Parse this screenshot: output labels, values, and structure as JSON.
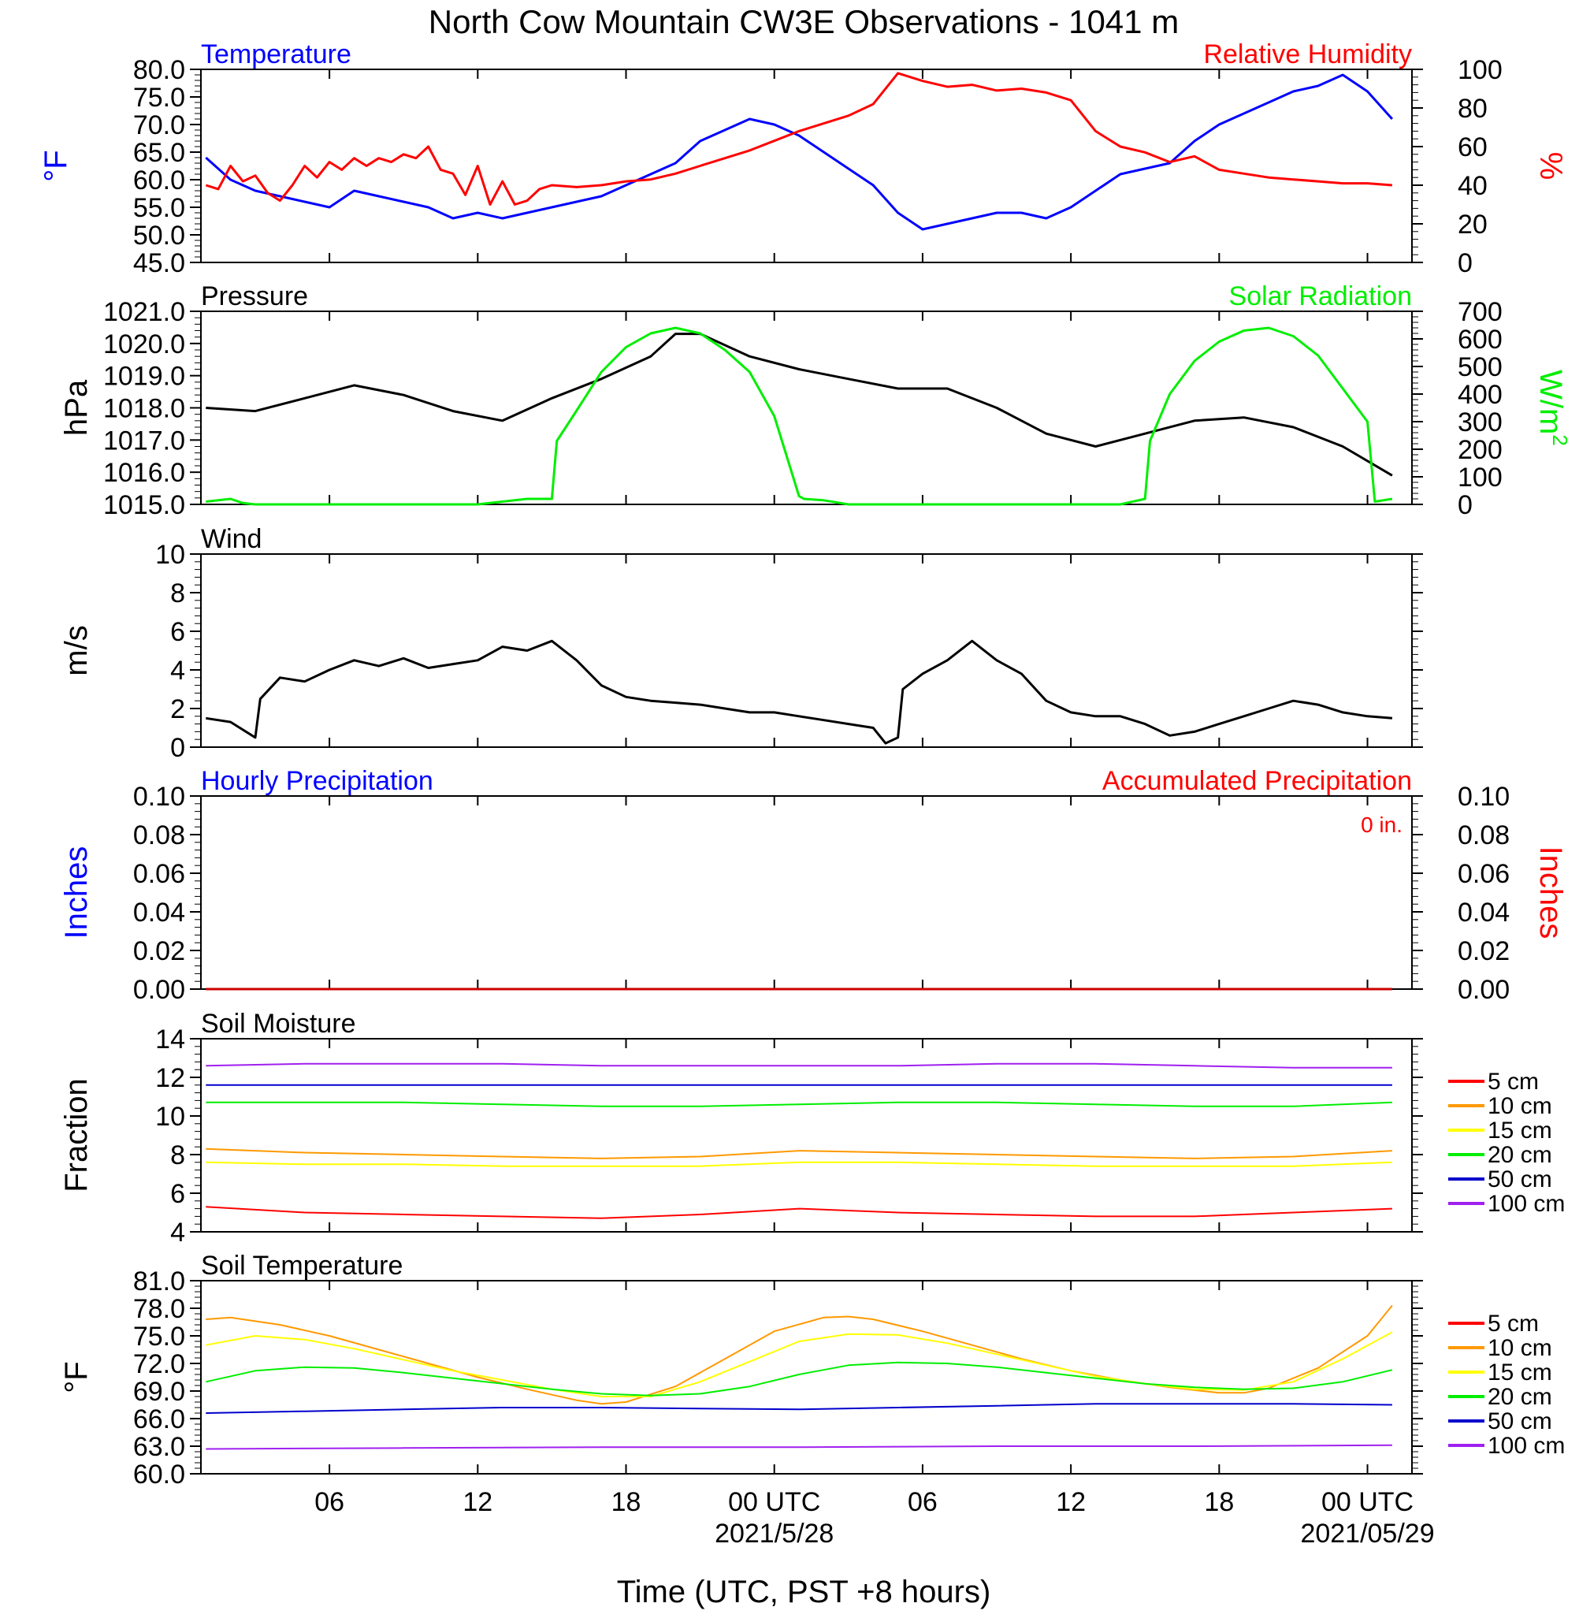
{
  "title": "North Cow Mountain CW3E Observations - 1041 m",
  "xlabel": "Time (UTC, PST +8 hours)",
  "x_ticks": [
    "06",
    "12",
    "18",
    "00 UTC",
    "06",
    "12",
    "18",
    "00 UTC"
  ],
  "x_dates": [
    "2021/5/28",
    "2021/05/29"
  ],
  "colors": {
    "blue": "#0000ff",
    "red": "#ff0000",
    "green": "#00ee00",
    "black": "#000000",
    "orange": "#ff9900",
    "yellow": "#ffff00",
    "purple": "#a020f0"
  },
  "chart_data": [
    {
      "type": "line",
      "title_left": "Temperature",
      "title_right": "Relative Humidity",
      "ylabel_left": "°F",
      "ylabel_right": "%",
      "ylim_left": [
        45,
        80
      ],
      "ylim_right": [
        0,
        100
      ],
      "yticks_left": [
        "45.0",
        "50.0",
        "55.0",
        "60.0",
        "65.0",
        "70.0",
        "75.0",
        "80.0"
      ],
      "yticks_right": [
        "0",
        "20",
        "40",
        "60",
        "80",
        "100"
      ],
      "series": [
        {
          "name": "Temperature",
          "axis": "left",
          "color": "#0000ff",
          "x": [
            1,
            2,
            3,
            4,
            5,
            6,
            7,
            8,
            9,
            10,
            11,
            12,
            13,
            14,
            15,
            16,
            17,
            18,
            19,
            20,
            21,
            22,
            23,
            24,
            25,
            26,
            27,
            28,
            29,
            30,
            31,
            32,
            33,
            34,
            35,
            36,
            37,
            38,
            39,
            40,
            41,
            42,
            43,
            44,
            45,
            46,
            47,
            48,
            49
          ],
          "y": [
            64,
            60,
            58,
            57,
            56,
            55,
            58,
            57,
            56,
            55,
            53,
            54,
            53,
            54,
            55,
            56,
            57,
            59,
            61,
            63,
            67,
            69,
            71,
            70,
            68,
            65,
            62,
            59,
            54,
            51,
            52,
            53,
            54,
            54,
            53,
            55,
            58,
            61,
            62,
            63,
            67,
            70,
            72,
            74,
            76,
            77,
            79,
            76,
            71
          ]
        },
        {
          "name": "Relative Humidity",
          "axis": "right",
          "color": "#ff0000",
          "x": [
            1,
            1.5,
            2,
            2.5,
            3,
            3.5,
            4,
            4.5,
            5,
            5.5,
            6,
            6.5,
            7,
            7.5,
            8,
            8.5,
            9,
            9.5,
            10,
            10.5,
            11,
            11.5,
            12,
            12.5,
            13,
            13.5,
            14,
            14.5,
            15,
            16,
            17,
            18,
            19,
            20,
            21,
            22,
            23,
            24,
            25,
            26,
            27,
            28,
            29,
            30,
            31,
            32,
            33,
            34,
            35,
            36,
            37,
            38,
            39,
            40,
            41,
            42,
            43,
            44,
            45,
            46,
            47,
            48,
            49
          ],
          "y": [
            40,
            38,
            50,
            42,
            45,
            36,
            32,
            40,
            50,
            44,
            52,
            48,
            54,
            50,
            54,
            52,
            56,
            54,
            60,
            48,
            46,
            35,
            50,
            30,
            42,
            30,
            32,
            38,
            40,
            39,
            40,
            42,
            43,
            46,
            50,
            54,
            58,
            63,
            68,
            72,
            76,
            82,
            98,
            94,
            91,
            92,
            89,
            90,
            88,
            84,
            68,
            60,
            57,
            52,
            55,
            48,
            46,
            44,
            43,
            42,
            41,
            41,
            40
          ]
        }
      ]
    },
    {
      "type": "line",
      "title_left": "Pressure",
      "title_right": "Solar Radiation",
      "ylabel_left": "hPa",
      "ylabel_right": "W/m",
      "ylabel_right_sup": "2",
      "ylim_left": [
        1015,
        1021
      ],
      "ylim_right": [
        0,
        700
      ],
      "yticks_left": [
        "1015.0",
        "1016.0",
        "1017.0",
        "1018.0",
        "1019.0",
        "1020.0",
        "1021.0"
      ],
      "yticks_right": [
        "0",
        "100",
        "200",
        "300",
        "400",
        "500",
        "600",
        "700"
      ],
      "series": [
        {
          "name": "Pressure",
          "axis": "left",
          "color": "#000000",
          "x": [
            1,
            3,
            5,
            7,
            9,
            11,
            13,
            15,
            17,
            19,
            20,
            21,
            23,
            25,
            27,
            29,
            31,
            33,
            35,
            37,
            39,
            41,
            43,
            45,
            47,
            49
          ],
          "y": [
            1018.0,
            1017.9,
            1018.3,
            1018.7,
            1018.4,
            1017.9,
            1017.6,
            1018.3,
            1018.9,
            1019.6,
            1020.3,
            1020.3,
            1019.6,
            1019.2,
            1018.9,
            1018.6,
            1018.6,
            1018.0,
            1017.2,
            1016.8,
            1017.2,
            1017.6,
            1017.7,
            1017.4,
            1016.8,
            1015.9
          ]
        },
        {
          "name": "Solar Radiation",
          "axis": "right",
          "color": "#00ee00",
          "x": [
            1,
            2,
            2.5,
            3,
            4,
            6,
            8,
            10,
            12,
            14,
            15,
            15.2,
            16,
            17,
            18,
            19,
            20,
            21,
            22,
            23,
            24,
            25,
            25.2,
            26,
            27,
            28,
            29,
            30,
            33,
            36,
            38,
            39,
            39.2,
            40,
            41,
            42,
            43,
            44,
            45,
            46,
            47,
            48,
            48.3,
            49
          ],
          "y": [
            10,
            20,
            5,
            0,
            0,
            0,
            0,
            0,
            0,
            20,
            20,
            230,
            340,
            480,
            570,
            620,
            640,
            620,
            560,
            480,
            320,
            30,
            20,
            15,
            0,
            0,
            0,
            0,
            0,
            0,
            0,
            20,
            230,
            400,
            520,
            590,
            630,
            640,
            610,
            540,
            420,
            300,
            10,
            20
          ]
        }
      ]
    },
    {
      "type": "line",
      "title_left": "Wind",
      "ylabel_left": "m/s",
      "ylim_left": [
        0,
        10
      ],
      "yticks_left": [
        "0",
        "2",
        "4",
        "6",
        "8",
        "10"
      ],
      "series": [
        {
          "name": "Wind",
          "axis": "left",
          "color": "#000000",
          "x": [
            1,
            2,
            3,
            3.2,
            4,
            5,
            6,
            7,
            8,
            9,
            10,
            11,
            12,
            13,
            14,
            15,
            16,
            17,
            18,
            19,
            20,
            21,
            22,
            23,
            24,
            25,
            26,
            27,
            28,
            28.5,
            29,
            29.2,
            30,
            31,
            32,
            33,
            34,
            35,
            36,
            37,
            38,
            39,
            40,
            41,
            42,
            43,
            44,
            45,
            46,
            47,
            48,
            49
          ],
          "y": [
            1.5,
            1.3,
            0.5,
            2.5,
            3.6,
            3.4,
            4.0,
            4.5,
            4.2,
            4.6,
            4.1,
            4.3,
            4.5,
            5.2,
            5.0,
            5.5,
            4.5,
            3.2,
            2.6,
            2.4,
            2.3,
            2.2,
            2.0,
            1.8,
            1.8,
            1.6,
            1.4,
            1.2,
            1.0,
            0.2,
            0.5,
            3.0,
            3.8,
            4.5,
            5.5,
            4.5,
            3.8,
            2.4,
            1.8,
            1.6,
            1.6,
            1.2,
            0.6,
            0.8,
            1.2,
            1.6,
            2.0,
            2.4,
            2.2,
            1.8,
            1.6,
            1.5
          ]
        }
      ]
    },
    {
      "type": "line",
      "title_left": "Hourly Precipitation",
      "title_right": "Accumulated Precipitation",
      "annotation": "0 in.",
      "ylabel_left": "Inches",
      "ylabel_right": "Inches",
      "ylim_left": [
        0,
        0.1
      ],
      "ylim_right": [
        0,
        0.1
      ],
      "yticks_left": [
        "0.00",
        "0.02",
        "0.04",
        "0.06",
        "0.08",
        "0.10"
      ],
      "yticks_right": [
        "0.00",
        "0.02",
        "0.04",
        "0.06",
        "0.08",
        "0.10"
      ],
      "series": [
        {
          "name": "Accumulated Precipitation",
          "axis": "left",
          "color": "#cc0000",
          "x": [
            1,
            49
          ],
          "y": [
            0,
            0
          ]
        }
      ]
    },
    {
      "type": "line",
      "title_left": "Soil Moisture",
      "ylabel_left": "Fraction",
      "ylim_left": [
        4,
        14
      ],
      "yticks_left": [
        "4",
        "6",
        "8",
        "10",
        "12",
        "14"
      ],
      "legend": [
        "5 cm",
        "10 cm",
        "15 cm",
        "20 cm",
        "50 cm",
        "100 cm"
      ],
      "series": [
        {
          "name": "5 cm",
          "color": "#ff0000",
          "x": [
            1,
            5,
            9,
            13,
            17,
            21,
            25,
            29,
            33,
            37,
            41,
            45,
            49
          ],
          "y": [
            5.3,
            5.0,
            4.9,
            4.8,
            4.7,
            4.9,
            5.2,
            5.0,
            4.9,
            4.8,
            4.8,
            5.0,
            5.2
          ]
        },
        {
          "name": "10 cm",
          "color": "#ff9900",
          "x": [
            1,
            5,
            9,
            13,
            17,
            21,
            25,
            29,
            33,
            37,
            41,
            45,
            49
          ],
          "y": [
            8.3,
            8.1,
            8.0,
            7.9,
            7.8,
            7.9,
            8.2,
            8.1,
            8.0,
            7.9,
            7.8,
            7.9,
            8.2
          ]
        },
        {
          "name": "15 cm",
          "color": "#ffff00",
          "x": [
            1,
            5,
            9,
            13,
            17,
            21,
            25,
            29,
            33,
            37,
            41,
            45,
            49
          ],
          "y": [
            7.6,
            7.5,
            7.5,
            7.4,
            7.4,
            7.4,
            7.6,
            7.6,
            7.5,
            7.4,
            7.4,
            7.4,
            7.6
          ]
        },
        {
          "name": "20 cm",
          "color": "#00ee00",
          "x": [
            1,
            5,
            9,
            13,
            17,
            21,
            25,
            29,
            33,
            37,
            41,
            45,
            49
          ],
          "y": [
            10.7,
            10.7,
            10.7,
            10.6,
            10.5,
            10.5,
            10.6,
            10.7,
            10.7,
            10.6,
            10.5,
            10.5,
            10.7
          ]
        },
        {
          "name": "50 cm",
          "color": "#0000cc",
          "x": [
            1,
            5,
            9,
            13,
            17,
            21,
            25,
            29,
            33,
            37,
            41,
            45,
            49
          ],
          "y": [
            11.6,
            11.6,
            11.6,
            11.6,
            11.6,
            11.6,
            11.6,
            11.6,
            11.6,
            11.6,
            11.6,
            11.6,
            11.6
          ]
        },
        {
          "name": "100 cm",
          "color": "#a020f0",
          "x": [
            1,
            5,
            9,
            13,
            17,
            21,
            25,
            29,
            33,
            37,
            41,
            45,
            49
          ],
          "y": [
            12.6,
            12.7,
            12.7,
            12.7,
            12.6,
            12.6,
            12.6,
            12.6,
            12.7,
            12.7,
            12.6,
            12.5,
            12.5
          ]
        }
      ]
    },
    {
      "type": "line",
      "title_left": "Soil Temperature",
      "ylabel_left": "°F",
      "ylim_left": [
        60,
        81
      ],
      "yticks_left": [
        "60.0",
        "63.0",
        "66.0",
        "69.0",
        "72.0",
        "75.0",
        "78.0",
        "81.0"
      ],
      "legend": [
        "5 cm",
        "10 cm",
        "15 cm",
        "20 cm",
        "50 cm",
        "100 cm"
      ],
      "series": [
        {
          "name": "10 cm",
          "color": "#ff9900",
          "x": [
            1,
            2,
            4,
            6,
            8,
            10,
            12,
            14,
            16,
            17,
            18,
            20,
            22,
            24,
            26,
            27,
            28,
            30,
            32,
            34,
            36,
            38,
            40,
            42,
            43,
            44,
            46,
            48,
            49
          ],
          "y": [
            76.8,
            77.0,
            76.2,
            75.0,
            73.5,
            72.0,
            70.5,
            69.2,
            68.0,
            67.6,
            67.8,
            69.5,
            72.5,
            75.5,
            77.0,
            77.1,
            76.8,
            75.5,
            74.0,
            72.5,
            71.2,
            70.2,
            69.4,
            68.8,
            68.8,
            69.3,
            71.5,
            75.0,
            78.3
          ]
        },
        {
          "name": "15 cm",
          "color": "#ffff00",
          "x": [
            1,
            3,
            5,
            7,
            9,
            11,
            13,
            15,
            17,
            19,
            21,
            23,
            25,
            27,
            29,
            31,
            33,
            35,
            37,
            39,
            41,
            43,
            45,
            47,
            49
          ],
          "y": [
            74.0,
            75.0,
            74.6,
            73.6,
            72.4,
            71.2,
            70.2,
            69.2,
            68.4,
            68.4,
            70.0,
            72.2,
            74.4,
            75.2,
            75.1,
            74.2,
            73.0,
            71.8,
            70.6,
            69.8,
            69.2,
            69.1,
            70.0,
            72.5,
            75.4
          ]
        },
        {
          "name": "20 cm",
          "color": "#00ee00",
          "x": [
            1,
            3,
            5,
            7,
            9,
            11,
            13,
            15,
            17,
            19,
            21,
            23,
            25,
            27,
            29,
            31,
            33,
            35,
            37,
            39,
            41,
            43,
            45,
            47,
            49
          ],
          "y": [
            70.0,
            71.2,
            71.6,
            71.5,
            71.0,
            70.4,
            69.8,
            69.2,
            68.7,
            68.5,
            68.7,
            69.5,
            70.8,
            71.8,
            72.1,
            72.0,
            71.6,
            71.0,
            70.4,
            69.8,
            69.4,
            69.2,
            69.3,
            70.0,
            71.3
          ]
        },
        {
          "name": "50 cm",
          "color": "#0000cc",
          "x": [
            1,
            5,
            9,
            13,
            17,
            21,
            25,
            29,
            33,
            37,
            41,
            45,
            49
          ],
          "y": [
            66.6,
            66.8,
            67.0,
            67.2,
            67.2,
            67.1,
            67.0,
            67.2,
            67.4,
            67.6,
            67.6,
            67.6,
            67.5
          ]
        },
        {
          "name": "100 cm",
          "color": "#a020f0",
          "x": [
            1,
            9,
            17,
            25,
            33,
            41,
            49
          ],
          "y": [
            62.7,
            62.8,
            62.9,
            62.9,
            63.0,
            63.0,
            63.1
          ]
        }
      ]
    }
  ]
}
